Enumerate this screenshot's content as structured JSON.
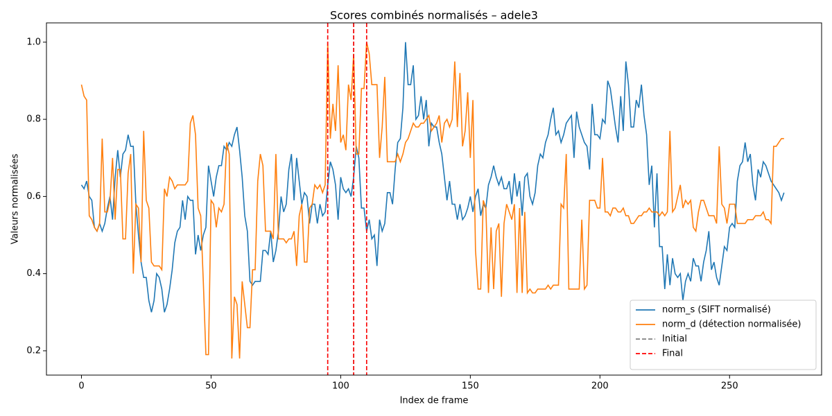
{
  "chart_data": {
    "type": "line",
    "title": "Scores combinés normalisés – adele3",
    "x_label": "Index de frame",
    "y_label": "Valeurs normalisées",
    "x": [
      0,
      1,
      2,
      3,
      4,
      5,
      6,
      7,
      8,
      9,
      10,
      11,
      12,
      13,
      14,
      15,
      16,
      17,
      18,
      19,
      20,
      21,
      22,
      23,
      24,
      25,
      26,
      27,
      28,
      29,
      30,
      31,
      32,
      33,
      34,
      35,
      36,
      37,
      38,
      39,
      40,
      41,
      42,
      43,
      44,
      45,
      46,
      47,
      48,
      49,
      50,
      51,
      52,
      53,
      54,
      55,
      56,
      57,
      58,
      59,
      60,
      61,
      62,
      63,
      64,
      65,
      66,
      67,
      68,
      69,
      70,
      71,
      72,
      73,
      74,
      75,
      76,
      77,
      78,
      79,
      80,
      81,
      82,
      83,
      84,
      85,
      86,
      87,
      88,
      89,
      90,
      91,
      92,
      93,
      94,
      95,
      96,
      97,
      98,
      99,
      100,
      101,
      102,
      103,
      104,
      105,
      106,
      107,
      108,
      109,
      110,
      111,
      112,
      113,
      114,
      115,
      116,
      117,
      118,
      119,
      120,
      121,
      122,
      123,
      124,
      125,
      126,
      127,
      128,
      129,
      130,
      131,
      132,
      133,
      134,
      135,
      136,
      137,
      138,
      139,
      140,
      141,
      142,
      143,
      144,
      145,
      146,
      147,
      148,
      149,
      150,
      151,
      152,
      153,
      154,
      155,
      156,
      157,
      158,
      159,
      160,
      161,
      162,
      163,
      164,
      165,
      166,
      167,
      168,
      169,
      170,
      171,
      172,
      173,
      174,
      175,
      176,
      177,
      178,
      179,
      180,
      181,
      182,
      183,
      184,
      185,
      186,
      187,
      188,
      189,
      190,
      191,
      192,
      193,
      194,
      195,
      196,
      197,
      198,
      199,
      200,
      201,
      202,
      203,
      204,
      205,
      206,
      207,
      208,
      209,
      210,
      211,
      212,
      213,
      214,
      215,
      216,
      217,
      218,
      219,
      220,
      221,
      222,
      223,
      224,
      225,
      226,
      227,
      228,
      229,
      230,
      231,
      232,
      233,
      234,
      235,
      236,
      237,
      238,
      239,
      240,
      241,
      242,
      243,
      244,
      245,
      246,
      247,
      248,
      249,
      250,
      251,
      252,
      253,
      254,
      255,
      256,
      257,
      258,
      259,
      260,
      261,
      262,
      263,
      264,
      265,
      266,
      267,
      268,
      269,
      270,
      271
    ],
    "series": [
      {
        "name": "norm_s (SIFT normalisé)",
        "color": "#1f77b4",
        "values": [
          0.63,
          0.62,
          0.64,
          0.6,
          0.59,
          0.52,
          0.51,
          0.53,
          0.51,
          0.53,
          0.57,
          0.6,
          0.54,
          0.65,
          0.72,
          0.65,
          0.71,
          0.72,
          0.76,
          0.73,
          0.73,
          0.58,
          0.5,
          0.43,
          0.39,
          0.39,
          0.33,
          0.3,
          0.33,
          0.4,
          0.39,
          0.36,
          0.3,
          0.32,
          0.36,
          0.41,
          0.48,
          0.51,
          0.52,
          0.59,
          0.54,
          0.6,
          0.59,
          0.59,
          0.45,
          0.5,
          0.46,
          0.5,
          0.52,
          0.68,
          0.64,
          0.6,
          0.65,
          0.68,
          0.68,
          0.73,
          0.72,
          0.74,
          0.73,
          0.76,
          0.78,
          0.72,
          0.65,
          0.55,
          0.51,
          0.38,
          0.37,
          0.38,
          0.38,
          0.38,
          0.46,
          0.46,
          0.45,
          0.51,
          0.43,
          0.46,
          0.51,
          0.6,
          0.56,
          0.58,
          0.67,
          0.71,
          0.59,
          0.7,
          0.64,
          0.58,
          0.61,
          0.6,
          0.53,
          0.58,
          0.58,
          0.53,
          0.58,
          0.55,
          0.56,
          0.63,
          0.69,
          0.67,
          0.63,
          0.54,
          0.65,
          0.62,
          0.61,
          0.62,
          0.6,
          0.65,
          0.73,
          0.7,
          0.57,
          0.57,
          0.51,
          0.54,
          0.49,
          0.5,
          0.42,
          0.54,
          0.51,
          0.53,
          0.61,
          0.61,
          0.58,
          0.67,
          0.74,
          0.75,
          0.83,
          1.0,
          0.89,
          0.89,
          0.94,
          0.8,
          0.81,
          0.86,
          0.8,
          0.85,
          0.73,
          0.79,
          0.78,
          0.78,
          0.74,
          0.71,
          0.65,
          0.59,
          0.64,
          0.58,
          0.58,
          0.54,
          0.58,
          0.54,
          0.55,
          0.57,
          0.6,
          0.56,
          0.6,
          0.62,
          0.55,
          0.58,
          0.57,
          0.63,
          0.65,
          0.68,
          0.65,
          0.63,
          0.65,
          0.62,
          0.62,
          0.64,
          0.58,
          0.66,
          0.6,
          0.64,
          0.55,
          0.65,
          0.66,
          0.6,
          0.58,
          0.61,
          0.68,
          0.71,
          0.7,
          0.74,
          0.76,
          0.8,
          0.83,
          0.76,
          0.77,
          0.74,
          0.76,
          0.79,
          0.8,
          0.81,
          0.7,
          0.82,
          0.78,
          0.76,
          0.74,
          0.73,
          0.67,
          0.84,
          0.76,
          0.76,
          0.75,
          0.8,
          0.79,
          0.9,
          0.88,
          0.83,
          0.78,
          0.74,
          0.86,
          0.77,
          0.95,
          0.89,
          0.78,
          0.78,
          0.85,
          0.83,
          0.89,
          0.81,
          0.76,
          0.63,
          0.68,
          0.52,
          0.66,
          0.47,
          0.47,
          0.36,
          0.45,
          0.37,
          0.44,
          0.4,
          0.39,
          0.4,
          0.33,
          0.38,
          0.4,
          0.38,
          0.44,
          0.42,
          0.42,
          0.38,
          0.43,
          0.46,
          0.51,
          0.41,
          0.43,
          0.39,
          0.37,
          0.42,
          0.47,
          0.46,
          0.52,
          0.53,
          0.52,
          0.64,
          0.68,
          0.69,
          0.74,
          0.69,
          0.71,
          0.63,
          0.59,
          0.67,
          0.65,
          0.69,
          0.68,
          0.66,
          0.64,
          0.63,
          0.62,
          0.61,
          0.59,
          0.61
        ]
      },
      {
        "name": "norm_d (détection normalisée)",
        "color": "#ff7f0e",
        "values": [
          0.89,
          0.86,
          0.85,
          0.55,
          0.54,
          0.52,
          0.51,
          0.53,
          0.75,
          0.56,
          0.56,
          0.59,
          0.7,
          0.54,
          0.67,
          0.67,
          0.49,
          0.49,
          0.66,
          0.71,
          0.4,
          0.58,
          0.57,
          0.43,
          0.77,
          0.59,
          0.57,
          0.43,
          0.42,
          0.42,
          0.42,
          0.41,
          0.62,
          0.6,
          0.65,
          0.64,
          0.62,
          0.63,
          0.63,
          0.63,
          0.63,
          0.64,
          0.79,
          0.81,
          0.76,
          0.57,
          0.55,
          0.38,
          0.19,
          0.19,
          0.59,
          0.58,
          0.52,
          0.57,
          0.56,
          0.58,
          0.74,
          0.71,
          0.18,
          0.34,
          0.32,
          0.18,
          0.38,
          0.32,
          0.26,
          0.26,
          0.41,
          0.41,
          0.64,
          0.71,
          0.68,
          0.51,
          0.51,
          0.51,
          0.49,
          0.71,
          0.49,
          0.49,
          0.49,
          0.48,
          0.49,
          0.49,
          0.51,
          0.42,
          0.55,
          0.58,
          0.43,
          0.43,
          0.57,
          0.58,
          0.63,
          0.62,
          0.63,
          0.61,
          0.63,
          1.0,
          0.75,
          0.84,
          0.77,
          0.94,
          0.74,
          0.76,
          0.72,
          0.89,
          0.85,
          0.97,
          0.71,
          0.71,
          0.88,
          0.88,
          1.0,
          0.97,
          0.89,
          0.89,
          0.89,
          0.7,
          0.78,
          0.91,
          0.69,
          0.69,
          0.69,
          0.69,
          0.71,
          0.69,
          0.71,
          0.74,
          0.75,
          0.77,
          0.79,
          0.78,
          0.78,
          0.79,
          0.79,
          0.8,
          0.81,
          0.77,
          0.78,
          0.79,
          0.81,
          0.74,
          0.79,
          0.8,
          0.78,
          0.8,
          0.95,
          0.78,
          0.92,
          0.73,
          0.77,
          0.87,
          0.7,
          0.85,
          0.46,
          0.36,
          0.36,
          0.59,
          0.57,
          0.35,
          0.52,
          0.36,
          0.51,
          0.53,
          0.34,
          0.53,
          0.58,
          0.56,
          0.54,
          0.58,
          0.35,
          0.57,
          0.35,
          0.56,
          0.35,
          0.36,
          0.35,
          0.35,
          0.36,
          0.36,
          0.36,
          0.36,
          0.37,
          0.36,
          0.37,
          0.37,
          0.37,
          0.58,
          0.57,
          0.71,
          0.36,
          0.36,
          0.36,
          0.36,
          0.36,
          0.54,
          0.36,
          0.37,
          0.59,
          0.59,
          0.59,
          0.57,
          0.57,
          0.7,
          0.56,
          0.56,
          0.55,
          0.57,
          0.57,
          0.56,
          0.56,
          0.57,
          0.55,
          0.55,
          0.53,
          0.53,
          0.54,
          0.55,
          0.55,
          0.56,
          0.56,
          0.57,
          0.56,
          0.56,
          0.56,
          0.55,
          0.56,
          0.55,
          0.56,
          0.77,
          0.56,
          0.57,
          0.6,
          0.63,
          0.57,
          0.59,
          0.58,
          0.59,
          0.52,
          0.51,
          0.56,
          0.59,
          0.59,
          0.57,
          0.55,
          0.55,
          0.55,
          0.53,
          0.73,
          0.58,
          0.57,
          0.53,
          0.58,
          0.58,
          0.58,
          0.53,
          0.53,
          0.53,
          0.53,
          0.54,
          0.54,
          0.54,
          0.55,
          0.55,
          0.55,
          0.56,
          0.54,
          0.54,
          0.53,
          0.73,
          0.73,
          0.74,
          0.75,
          0.75
        ]
      }
    ],
    "vlines": [
      {
        "name": "Initial",
        "color": "#808080",
        "x": [
          95,
          105,
          110
        ]
      },
      {
        "name": "Final",
        "color": "#ff0000",
        "x": [
          95,
          105,
          110
        ]
      }
    ],
    "xlim": [
      -13.5,
      285.5
    ],
    "ylim": [
      0.137,
      1.05
    ],
    "xticks": [
      0,
      50,
      100,
      150,
      200,
      250
    ],
    "yticks": [
      0.2,
      0.4,
      0.6,
      0.8,
      {
        "value": 1,
        "label": "1.0"
      }
    ],
    "grid": false,
    "legend": "lower right"
  }
}
